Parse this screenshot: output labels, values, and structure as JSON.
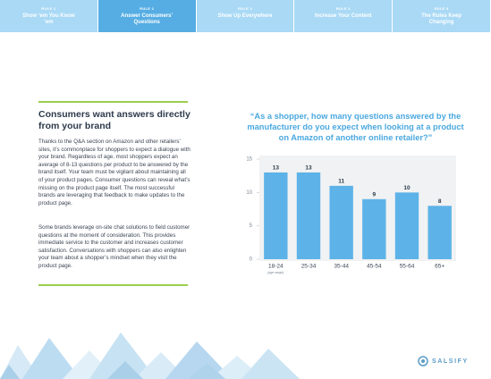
{
  "nav": {
    "tabs": [
      {
        "label": "RULE 1",
        "title": "Show ‘em You Know ‘em",
        "active": false
      },
      {
        "label": "RULE 2",
        "title": "Answer Consumers’ Questions",
        "active": true
      },
      {
        "label": "RULE 3",
        "title": "Show Up Everywhere",
        "active": false
      },
      {
        "label": "RULE 4",
        "title": "Increase Your Content",
        "active": false
      },
      {
        "label": "RULE 5",
        "title": "The Rules Keep Changing",
        "active": false
      }
    ]
  },
  "article": {
    "heading": "Consumers want answers directly from your brand",
    "paragraphs": [
      "Thanks to the Q&A section on Amazon and other retailers’ sites, it’s commonplace for shoppers to expect a dialogue with your brand. Regardless of age, most shoppers expect an average of 8-13 questions per product to be answered by the brand itself. Your team must be vigilant about maintaining all of your product pages. Consumer questions can reveal what’s missing on the product page itself. The most successful brands are leveraging that feedback to make updates to the product page.",
      "Some brands leverage on-site chat solutions to field customer questions at the moment of consideration. This provides immediate service to the customer and increases customer satisfaction. Conversations with shoppers can also enlighten your team about a shopper’s mindset when they visit the product page."
    ]
  },
  "chart_data": {
    "type": "bar",
    "title": "“As a shopper, how many questions answered by the manufacturer do you expect when looking at a product on Amazon of another online retailer?”",
    "categories": [
      "18-24",
      "25-34",
      "35-44",
      "45-54",
      "55-64",
      "65+"
    ],
    "xlabel": "(age range)",
    "values": [
      13,
      13,
      11,
      9,
      10,
      8
    ],
    "color": "#5db3e8",
    "ylim": [
      0,
      15
    ],
    "yticks": [
      0,
      5,
      10,
      15
    ],
    "grid": false
  },
  "footer": {
    "logo": "SALSIFY"
  }
}
